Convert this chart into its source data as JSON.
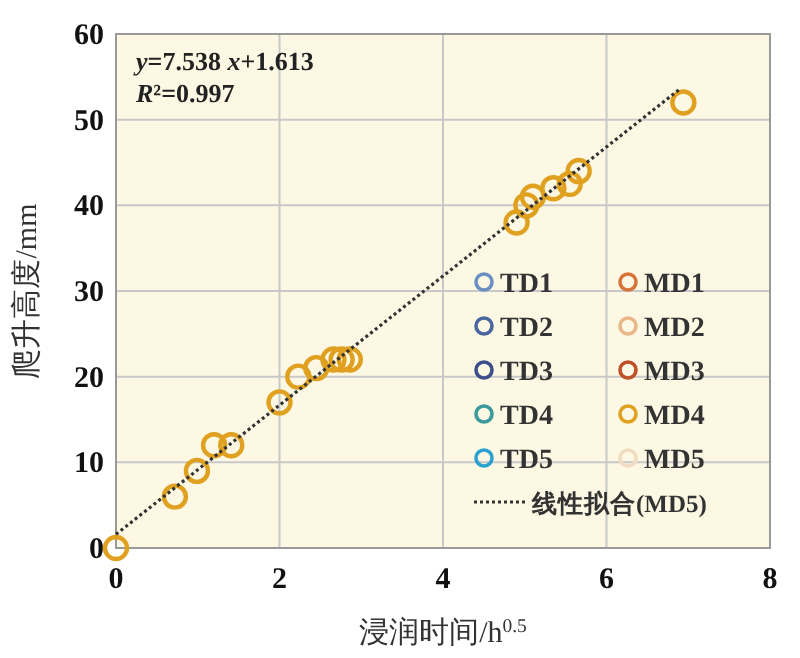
{
  "chart_data": {
    "type": "scatter",
    "xlabel": "浸润时间/h$^{0.5}$",
    "ylabel": "爬升高度/mm",
    "annotations": [
      "y=7.538 x+1.613",
      "R²=0.997"
    ],
    "x": [
      0,
      0.72,
      0.99,
      1.2,
      1.41,
      2.0,
      2.23,
      2.45,
      2.66,
      2.76,
      2.86,
      4.9,
      5.02,
      5.1,
      5.35,
      5.55,
      5.66,
      6.94
    ],
    "xlim": [
      0,
      8
    ],
    "xticks": [
      0,
      2,
      4,
      6,
      8
    ],
    "ylim": [
      0,
      60
    ],
    "yticks": [
      0,
      10,
      20,
      30,
      40,
      50,
      60
    ],
    "grid": true,
    "legend": "bottom right",
    "marker": "circle",
    "series": [
      {
        "name": "TD1",
        "color": "#6a8fc0",
        "values": [
          null,
          null,
          null,
          null,
          null,
          null,
          null,
          null,
          null,
          null,
          null,
          null,
          null,
          null,
          null,
          null,
          null,
          null
        ]
      },
      {
        "name": "MD1",
        "color": "#d8743a",
        "values": [
          null,
          null,
          null,
          null,
          null,
          null,
          null,
          null,
          null,
          null,
          null,
          null,
          null,
          null,
          null,
          null,
          null,
          null
        ]
      },
      {
        "name": "TD2",
        "color": "#4a67a0",
        "values": [
          null,
          null,
          null,
          null,
          null,
          null,
          null,
          null,
          null,
          null,
          null,
          null,
          null,
          null,
          null,
          null,
          null,
          null
        ]
      },
      {
        "name": "MD2",
        "color": "#e8b888",
        "values": [
          null,
          null,
          null,
          null,
          null,
          null,
          null,
          null,
          null,
          null,
          null,
          null,
          null,
          null,
          null,
          null,
          null,
          null
        ]
      },
      {
        "name": "TD3",
        "color": "#3d4f8a",
        "values": [
          null,
          null,
          null,
          null,
          null,
          null,
          null,
          null,
          null,
          null,
          null,
          null,
          null,
          null,
          null,
          null,
          null,
          null
        ]
      },
      {
        "name": "MD3",
        "color": "#c0502a",
        "values": [
          null,
          null,
          null,
          null,
          null,
          null,
          null,
          null,
          null,
          null,
          null,
          null,
          null,
          null,
          null,
          null,
          null,
          null
        ]
      },
      {
        "name": "TD4",
        "color": "#3a9a9a",
        "values": [
          null,
          null,
          null,
          null,
          null,
          null,
          null,
          null,
          null,
          null,
          null,
          null,
          null,
          null,
          null,
          null,
          null,
          null
        ]
      },
      {
        "name": "MD4",
        "color": "#e0a020",
        "values": [
          0,
          6,
          9,
          12,
          12,
          17,
          20,
          21,
          22,
          22,
          22,
          38,
          40,
          41,
          42,
          42.5,
          44,
          52
        ]
      },
      {
        "name": "TD5",
        "color": "#2aa0d0",
        "values": [
          null,
          null,
          null,
          null,
          null,
          null,
          null,
          null,
          null,
          null,
          null,
          null,
          null,
          null,
          null,
          null,
          null,
          null
        ]
      },
      {
        "name": "MD5",
        "color": "#f0dcc0",
        "values": [
          null,
          null,
          null,
          null,
          null,
          null,
          null,
          null,
          null,
          null,
          null,
          null,
          null,
          null,
          null,
          null,
          null,
          null
        ]
      },
      {
        "name": "线性拟合(MD5)",
        "type": "line",
        "color": "#333333",
        "line_style": "dotted",
        "marker": "none",
        "x": [
          0,
          6.9
        ],
        "values": [
          1.6,
          53.6
        ]
      }
    ]
  }
}
